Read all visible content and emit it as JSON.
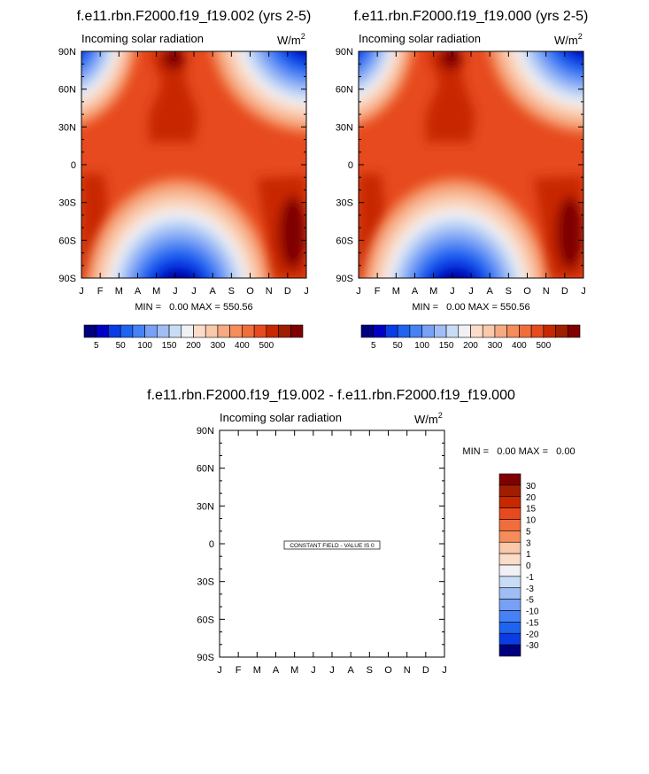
{
  "colors": {
    "palette": [
      "#00007f",
      "#0000c4",
      "#0a3ce6",
      "#1e64f0",
      "#4682f5",
      "#78a0f5",
      "#a0bef5",
      "#c8dcf5",
      "#f0f0f5",
      "#fadcc8",
      "#fac8aa",
      "#f5aa82",
      "#f58c5a",
      "#f06e3c",
      "#e64a1e",
      "#c82800",
      "#a01e00",
      "#7f0000"
    ],
    "diff_palette": [
      "#7f0000",
      "#a01e00",
      "#c82800",
      "#e64a1e",
      "#f06e3c",
      "#f58c5a",
      "#f5aa82",
      "#fac8aa",
      "#fadcc8",
      "#f0f0f5",
      "#c8dcf5",
      "#a0bef5",
      "#78a0f5",
      "#4682f5",
      "#1e64f0",
      "#0a3ce6",
      "#0000c4",
      "#00007f"
    ]
  },
  "chart_data": [
    {
      "type": "heatmap",
      "title": "f.e11.rbn.F2000.f19_f19.002 (yrs 2-5)",
      "subtitle_left": "Incoming solar radiation",
      "units_base": "W/m",
      "units_exp": "2",
      "x_ticks": [
        "J",
        "F",
        "M",
        "A",
        "M",
        "J",
        "J",
        "A",
        "S",
        "O",
        "N",
        "D",
        "J"
      ],
      "y_ticks": [
        "90N",
        "60N",
        "30N",
        "0",
        "30S",
        "60S",
        "90S"
      ],
      "stats": "MIN =   0.00 MAX = 550.56",
      "min": 0.0,
      "max": 550.56,
      "colorbar_levels": [
        "5",
        "50",
        "100",
        "150",
        "200",
        "300",
        "400",
        "500"
      ]
    },
    {
      "type": "heatmap",
      "title": "f.e11.rbn.F2000.f19_f19.000 (yrs 2-5)",
      "subtitle_left": "Incoming solar radiation",
      "units_base": "W/m",
      "units_exp": "2",
      "x_ticks": [
        "J",
        "F",
        "M",
        "A",
        "M",
        "J",
        "J",
        "A",
        "S",
        "O",
        "N",
        "D",
        "J"
      ],
      "y_ticks": [
        "90N",
        "60N",
        "30N",
        "0",
        "30S",
        "60S",
        "90S"
      ],
      "stats": "MIN =   0.00 MAX = 550.56",
      "min": 0.0,
      "max": 550.56,
      "colorbar_levels": [
        "5",
        "50",
        "100",
        "150",
        "200",
        "300",
        "400",
        "500"
      ]
    },
    {
      "type": "heatmap",
      "title": "f.e11.rbn.F2000.f19_f19.002 - f.e11.rbn.F2000.f19_f19.000",
      "subtitle_left": "Incoming solar radiation",
      "units_base": "W/m",
      "units_exp": "2",
      "x_ticks": [
        "J",
        "F",
        "M",
        "A",
        "M",
        "J",
        "J",
        "A",
        "S",
        "O",
        "N",
        "D",
        "J"
      ],
      "y_ticks": [
        "90N",
        "60N",
        "30N",
        "0",
        "30S",
        "60S",
        "90S"
      ],
      "stats": "MIN =   0.00 MAX =   0.00",
      "min": 0.0,
      "max": 0.0,
      "constant_label": "CONSTANT FIELD - VALUE IS 0",
      "colorbar_levels": [
        "30",
        "20",
        "15",
        "10",
        "5",
        "3",
        "1",
        "0",
        "-1",
        "-3",
        "-5",
        "-10",
        "-15",
        "-20",
        "-30"
      ]
    }
  ]
}
